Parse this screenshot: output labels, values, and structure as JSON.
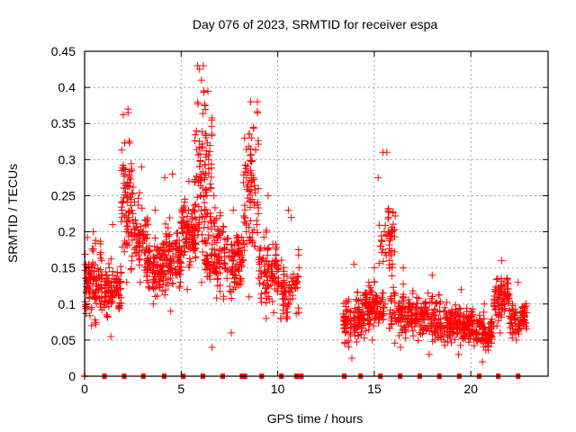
{
  "chart_data": {
    "type": "scatter",
    "title": "Day 076 of 2023, SRMTID for receiver espa",
    "xlabel": "GPS time / hours",
    "ylabel": "SRMTID / TECUs",
    "xlim": [
      0,
      24
    ],
    "ylim": [
      0,
      0.45
    ],
    "xticks": [
      0,
      5,
      10,
      15,
      20
    ],
    "xtick_labels": [
      "0",
      "5",
      "10",
      "15",
      "20"
    ],
    "yticks": [
      0,
      0.05,
      0.1,
      0.15,
      0.2,
      0.25,
      0.3,
      0.35,
      0.4,
      0.45
    ],
    "ytick_labels": [
      "0",
      "0.05",
      "0.1",
      "0.15",
      "0.2",
      "0.25",
      "0.3",
      "0.35",
      "0.4",
      "0.45"
    ],
    "grid": true,
    "marker_color": "#ff0000",
    "series": [
      {
        "name": "SRMTID",
        "marker": "plus",
        "clusters": [
          {
            "x_range": [
              0.0,
              0.9
            ],
            "y_center": 0.13,
            "y_spread": 0.035,
            "y_min": 0.07,
            "y_max": 0.2,
            "count": 90
          },
          {
            "x_range": [
              1.0,
              1.9
            ],
            "y_center": 0.12,
            "y_spread": 0.03,
            "y_min": 0.055,
            "y_max": 0.21,
            "count": 70
          },
          {
            "x_range": [
              1.9,
              2.6
            ],
            "y_center": 0.24,
            "y_spread": 0.07,
            "y_min": 0.13,
            "y_max": 0.37,
            "count": 70
          },
          {
            "x_range": [
              2.6,
              3.3
            ],
            "y_center": 0.19,
            "y_spread": 0.04,
            "y_min": 0.13,
            "y_max": 0.29,
            "count": 45
          },
          {
            "x_range": [
              3.2,
              4.1
            ],
            "y_center": 0.15,
            "y_spread": 0.03,
            "y_min": 0.1,
            "y_max": 0.23,
            "count": 80
          },
          {
            "x_range": [
              4.1,
              5.0
            ],
            "y_center": 0.16,
            "y_spread": 0.04,
            "y_min": 0.09,
            "y_max": 0.28,
            "count": 80
          },
          {
            "x_range": [
              5.0,
              5.8
            ],
            "y_center": 0.2,
            "y_spread": 0.035,
            "y_min": 0.12,
            "y_max": 0.27,
            "count": 75
          },
          {
            "x_range": [
              5.7,
              6.6
            ],
            "y_center": 0.27,
            "y_spread": 0.09,
            "y_min": 0.13,
            "y_max": 0.43,
            "count": 80
          },
          {
            "x_range": [
              6.2,
              7.2
            ],
            "y_center": 0.17,
            "y_spread": 0.04,
            "y_min": 0.04,
            "y_max": 0.25,
            "count": 70
          },
          {
            "x_range": [
              7.2,
              8.2
            ],
            "y_center": 0.16,
            "y_spread": 0.035,
            "y_min": 0.06,
            "y_max": 0.23,
            "count": 75
          },
          {
            "x_range": [
              8.2,
              9.0
            ],
            "y_center": 0.25,
            "y_spread": 0.08,
            "y_min": 0.11,
            "y_max": 0.38,
            "count": 65
          },
          {
            "x_range": [
              9.0,
              10.0
            ],
            "y_center": 0.15,
            "y_spread": 0.04,
            "y_min": 0.08,
            "y_max": 0.25,
            "count": 75
          },
          {
            "x_range": [
              10.0,
              11.1
            ],
            "y_center": 0.12,
            "y_spread": 0.03,
            "y_min": 0.08,
            "y_max": 0.23,
            "count": 55
          },
          {
            "x_range": [
              13.4,
              14.5
            ],
            "y_center": 0.08,
            "y_spread": 0.025,
            "y_min": 0.025,
            "y_max": 0.155,
            "count": 85
          },
          {
            "x_range": [
              14.5,
              15.5
            ],
            "y_center": 0.1,
            "y_spread": 0.025,
            "y_min": 0.05,
            "y_max": 0.15,
            "count": 80
          },
          {
            "x_range": [
              15.2,
              16.1
            ],
            "y_center": 0.18,
            "y_spread": 0.05,
            "y_min": 0.1,
            "y_max": 0.31,
            "count": 40
          },
          {
            "x_range": [
              15.8,
              17.2
            ],
            "y_center": 0.085,
            "y_spread": 0.025,
            "y_min": 0.04,
            "y_max": 0.15,
            "count": 95
          },
          {
            "x_range": [
              17.2,
              18.8
            ],
            "y_center": 0.08,
            "y_spread": 0.025,
            "y_min": 0.03,
            "y_max": 0.14,
            "count": 100
          },
          {
            "x_range": [
              18.8,
              20.2
            ],
            "y_center": 0.07,
            "y_spread": 0.02,
            "y_min": 0.03,
            "y_max": 0.12,
            "count": 100
          },
          {
            "x_range": [
              20.2,
              21.2
            ],
            "y_center": 0.06,
            "y_spread": 0.02,
            "y_min": 0.02,
            "y_max": 0.1,
            "count": 70
          },
          {
            "x_range": [
              21.2,
              22.0
            ],
            "y_center": 0.11,
            "y_spread": 0.025,
            "y_min": 0.06,
            "y_max": 0.16,
            "count": 60
          },
          {
            "x_range": [
              22.0,
              22.9
            ],
            "y_center": 0.08,
            "y_spread": 0.02,
            "y_min": 0.05,
            "y_max": 0.13,
            "count": 55
          }
        ],
        "peaks": [
          {
            "x": 5.85,
            "y": 0.43
          },
          {
            "x": 5.95,
            "y": 0.425
          },
          {
            "x": 6.05,
            "y": 0.41
          },
          {
            "x": 2.25,
            "y": 0.365
          },
          {
            "x": 2.0,
            "y": 0.362
          },
          {
            "x": 8.95,
            "y": 0.38
          },
          {
            "x": 15.45,
            "y": 0.31
          },
          {
            "x": 15.2,
            "y": 0.275
          },
          {
            "x": 4.15,
            "y": 0.275
          },
          {
            "x": 10.7,
            "y": 0.22
          },
          {
            "x": 11.1,
            "y": 0.15
          }
        ]
      },
      {
        "name": "baseline markers",
        "marker": "square",
        "y": 0,
        "x": [
          0.0,
          1.03,
          2.05,
          3.04,
          4.12,
          5.1,
          6.12,
          7.15,
          8.15,
          8.3,
          9.17,
          10.19,
          10.97,
          11.22,
          13.45,
          14.29,
          15.32,
          16.34,
          17.35,
          18.37,
          19.4,
          20.43,
          21.42,
          22.45
        ]
      }
    ]
  }
}
